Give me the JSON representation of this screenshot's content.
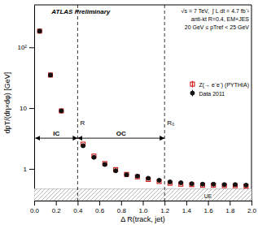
{
  "chart_data": {
    "type": "scatter",
    "title": "ATLAS Preliminary",
    "xlabel": "Δ R(track, jet)",
    "ylabel": "dpT/(dη×dφ) [GeV]",
    "log": "y",
    "xlim": [
      0,
      2.0
    ],
    "ylim": [
      0.3,
      500
    ],
    "xticks": [
      {
        "value": 0,
        "label": "0.0"
      },
      0.2,
      0.4,
      0.6,
      0.8,
      {
        "value": 1.0,
        "label": "1.0"
      },
      1.2,
      1.4,
      1.6,
      1.8,
      {
        "value": 2.0,
        "label": "2.0"
      }
    ],
    "yticks": [
      1,
      10,
      {
        "value": 100,
        "label": "10²"
      }
    ],
    "grid": false,
    "legend": "right",
    "x": [
      0.05,
      0.15,
      0.25,
      0.45,
      0.55,
      0.65,
      0.75,
      0.85,
      0.95,
      1.05,
      1.15,
      1.25,
      1.35,
      1.45,
      1.55,
      1.65,
      1.75,
      1.85,
      1.95
    ],
    "series": [
      {
        "name": "Z(→ e⁻e⁻) (PYTHIA)",
        "color": "#cc0000",
        "marker": "open-square",
        "values": [
          185,
          35,
          9.0,
          2.55,
          1.62,
          1.22,
          0.97,
          0.81,
          0.74,
          0.67,
          0.62,
          0.58,
          0.56,
          0.55,
          0.54,
          0.54,
          0.53,
          0.53,
          0.52
        ],
        "errors": [
          5.0,
          1.5,
          0.4,
          0.08,
          0.05,
          0.04,
          0.03,
          0.025,
          0.025,
          0.022,
          0.02,
          0.018,
          0.017,
          0.016,
          0.016,
          0.015,
          0.015,
          0.015,
          0.014
        ]
      },
      {
        "name": "Data 2011",
        "color": "#111111",
        "marker": "circle",
        "values": [
          185,
          35,
          9.0,
          2.4,
          1.55,
          1.18,
          0.93,
          0.8,
          0.76,
          0.7,
          0.65,
          0.61,
          0.59,
          0.57,
          0.56,
          0.56,
          0.55,
          0.55,
          0.54
        ],
        "errors": [
          5.0,
          1.5,
          0.4,
          0.08,
          0.05,
          0.04,
          0.03,
          0.025,
          0.025,
          0.022,
          0.02,
          0.018,
          0.017,
          0.016,
          0.016,
          0.015,
          0.015,
          0.015,
          0.014
        ]
      }
    ],
    "ue_band": {
      "label": "UE",
      "top": 0.47
    },
    "vlines": [
      {
        "x": 0.4,
        "label": "R"
      },
      {
        "x": 1.2,
        "label": "R₀"
      }
    ],
    "arrows": [
      {
        "label": "IC",
        "x": [
          0.01,
          0.4
        ],
        "y": 3.2
      },
      {
        "label": "OC",
        "x": [
          0.4,
          1.2
        ],
        "y": 3.2
      }
    ],
    "annotations": [
      "√s = 7 TeV,  ∫ L dt = 4.7 fb⁻¹",
      "anti-kt R=0.4, EM+JES",
      "20 GeV ≤ pTref < 25 GeV"
    ]
  }
}
